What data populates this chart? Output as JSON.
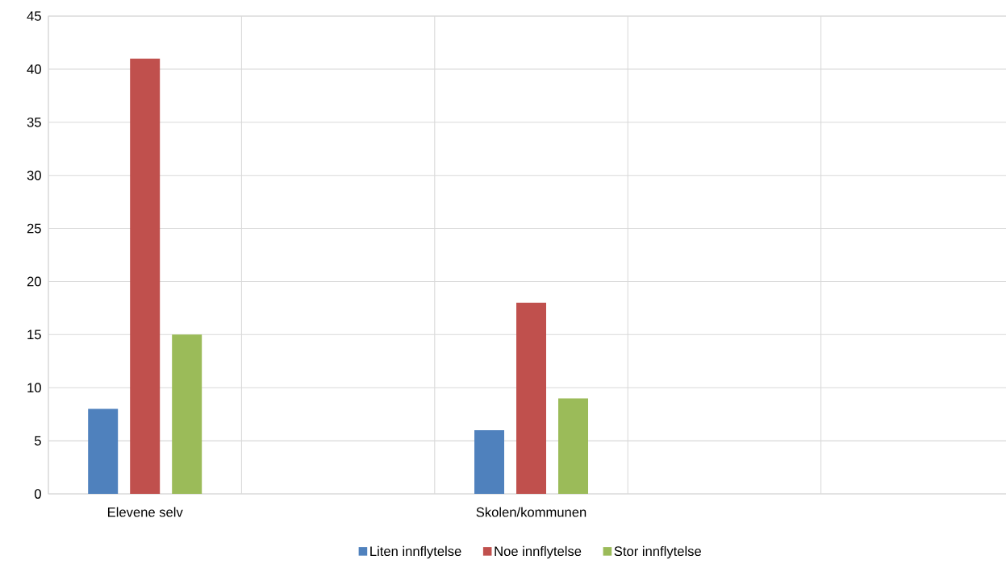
{
  "chart_data": {
    "type": "bar",
    "categories": [
      "Elevene selv",
      null,
      "Skolen/kommunen",
      null,
      null
    ],
    "series": [
      {
        "name": "Liten innflytelse",
        "color": "#4f81bd",
        "values": [
          8,
          null,
          6,
          null,
          null
        ]
      },
      {
        "name": "Noe innflytelse",
        "color": "#c0504d",
        "values": [
          41,
          null,
          18,
          null,
          null
        ]
      },
      {
        "name": "Stor innflytelse",
        "color": "#9bbb59",
        "values": [
          15,
          null,
          9,
          null,
          null
        ]
      }
    ],
    "ylim": [
      0,
      45
    ],
    "yticks": [
      0,
      5,
      10,
      15,
      20,
      25,
      30,
      35,
      40,
      45
    ],
    "grid": true,
    "legend": "bottom"
  }
}
